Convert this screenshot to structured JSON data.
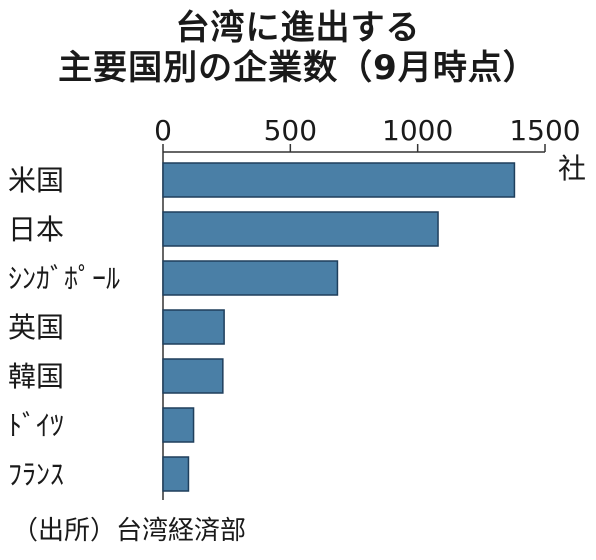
{
  "chart_data": {
    "type": "bar",
    "orientation": "horizontal",
    "title": "台湾に進出する",
    "subtitle": "主要国別の企業数（9月時点）",
    "unit": "社",
    "xlim": [
      0,
      1500
    ],
    "xticks": [
      0,
      500,
      1000,
      1500
    ],
    "xtick_labels": [
      "0",
      "500",
      "1000",
      "1500"
    ],
    "categories": [
      "米国",
      "日本",
      "ｼﾝｶﾞﾎﾟｰﾙ",
      "英国",
      "韓国",
      "ﾄﾞｲﾂ",
      "ﾌﾗﾝｽ"
    ],
    "values": [
      1380,
      1080,
      685,
      240,
      235,
      120,
      100
    ],
    "bar_color": "#4a7fa6",
    "grid": false,
    "legend": "none"
  },
  "source": "（出所）台湾経済部"
}
